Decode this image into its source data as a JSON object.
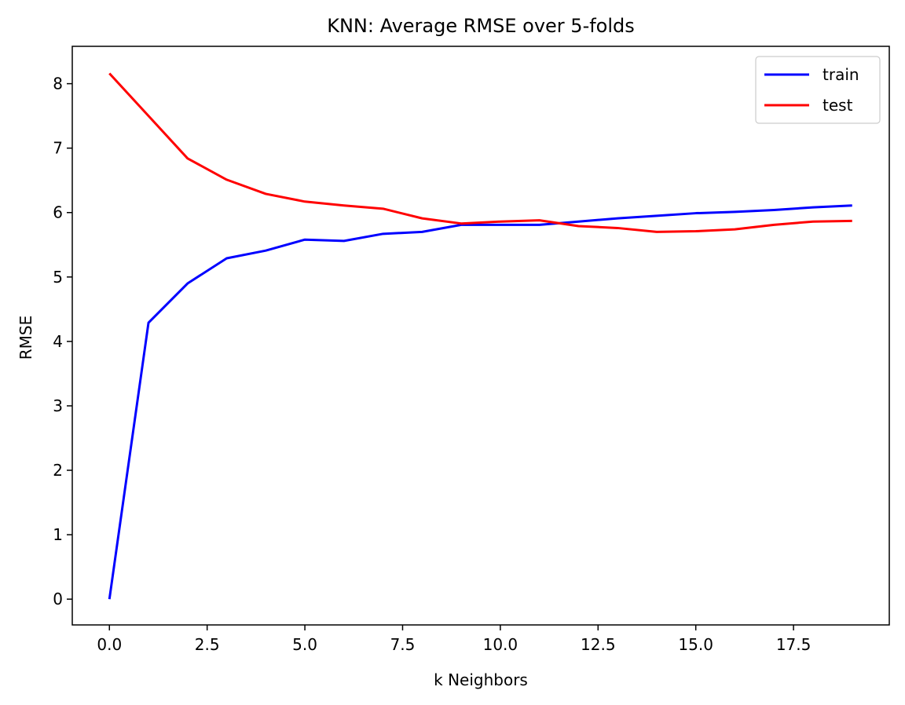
{
  "chart_data": {
    "type": "line",
    "title": "KNN: Average RMSE over 5-folds",
    "xlabel": "k Neighbors",
    "ylabel": "RMSE",
    "xlim": [
      -0.95,
      19.95
    ],
    "ylim": [
      -0.4,
      8.58
    ],
    "xticks": [
      0,
      2.5,
      5,
      7.5,
      10,
      12.5,
      15,
      17.5
    ],
    "xtick_labels": [
      "0.0",
      "2.5",
      "5.0",
      "7.5",
      "10.0",
      "12.5",
      "15.0",
      "17.5"
    ],
    "yticks": [
      0,
      1,
      2,
      3,
      4,
      5,
      6,
      7,
      8
    ],
    "ytick_labels": [
      "0",
      "1",
      "2",
      "3",
      "4",
      "5",
      "6",
      "7",
      "8"
    ],
    "grid": false,
    "legend_position": "top-right",
    "x": [
      0,
      1,
      2,
      3,
      4,
      5,
      6,
      7,
      8,
      9,
      10,
      11,
      12,
      13,
      14,
      15,
      16,
      17,
      18,
      19
    ],
    "series": [
      {
        "name": "train",
        "color": "#0000ff",
        "values": [
          0.0,
          4.29,
          4.9,
          5.29,
          5.41,
          5.58,
          5.56,
          5.67,
          5.7,
          5.81,
          5.81,
          5.81,
          5.86,
          5.91,
          5.95,
          5.99,
          6.01,
          6.04,
          6.08,
          6.11
        ]
      },
      {
        "name": "test",
        "color": "#ff0000",
        "values": [
          8.16,
          7.5,
          6.84,
          6.51,
          6.29,
          6.17,
          6.11,
          6.06,
          5.91,
          5.83,
          5.86,
          5.88,
          5.79,
          5.76,
          5.7,
          5.71,
          5.74,
          5.81,
          5.86,
          5.87
        ]
      }
    ]
  }
}
